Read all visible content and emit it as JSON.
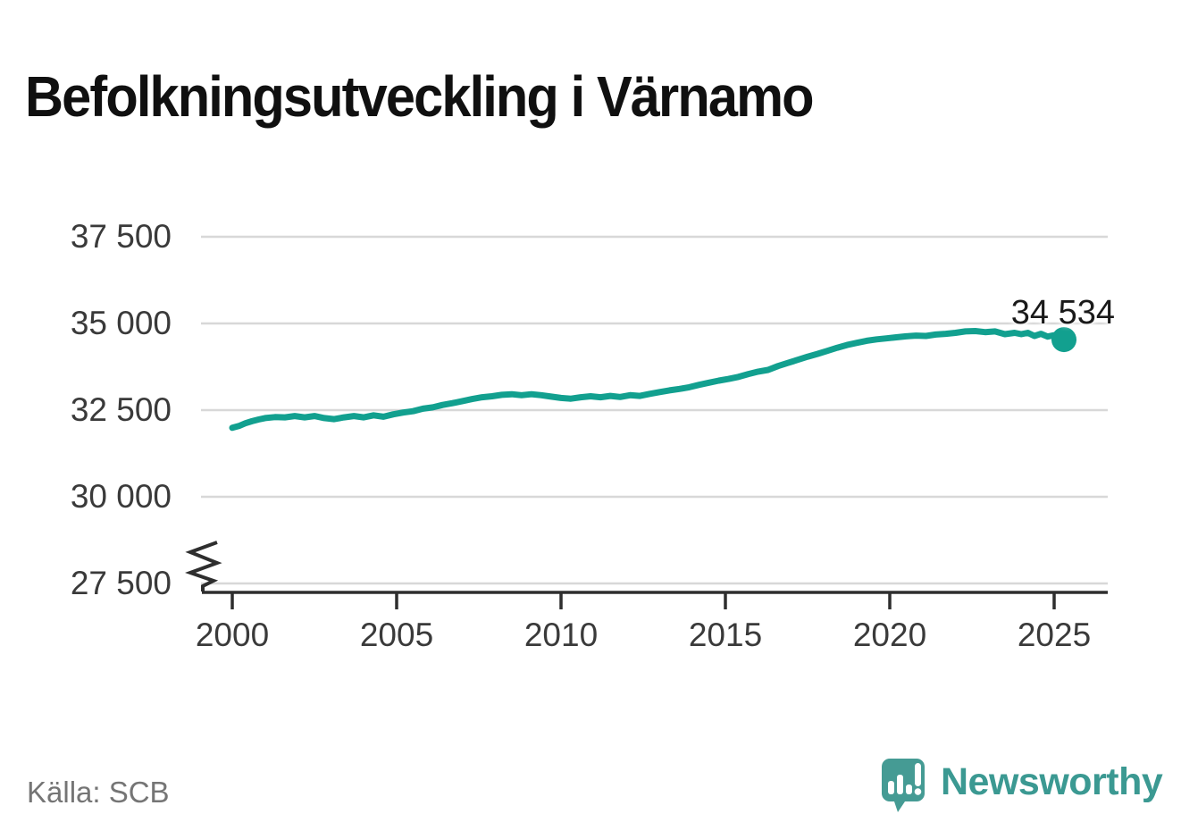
{
  "header": {
    "title": "Befolkningsutveckling i Värnamo"
  },
  "chart_data": {
    "type": "line",
    "title": "Befolkningsutveckling i Värnamo",
    "xlabel": "",
    "ylabel": "",
    "grid": true,
    "x_axis": {
      "ticks": [
        2000,
        2005,
        2010,
        2015,
        2020,
        2025
      ],
      "range": [
        1999.0,
        2026.6
      ]
    },
    "y_axis": {
      "ticks": [
        27500,
        30000,
        32500,
        35000,
        37500
      ],
      "tick_labels": [
        "27 500",
        "30 000",
        "32 500",
        "35 000",
        "37 500"
      ],
      "range_shown": [
        27500,
        37500
      ],
      "broken_axis": true
    },
    "series": [
      {
        "name": "Befolkning i Värnamo",
        "color": "#12a08f",
        "points": [
          [
            2000.0,
            31990
          ],
          [
            2000.2,
            32040
          ],
          [
            2000.4,
            32120
          ],
          [
            2000.6,
            32180
          ],
          [
            2000.8,
            32230
          ],
          [
            2001.0,
            32270
          ],
          [
            2001.3,
            32300
          ],
          [
            2001.6,
            32290
          ],
          [
            2001.9,
            32330
          ],
          [
            2002.2,
            32290
          ],
          [
            2002.5,
            32330
          ],
          [
            2002.8,
            32270
          ],
          [
            2003.1,
            32240
          ],
          [
            2003.4,
            32290
          ],
          [
            2003.7,
            32330
          ],
          [
            2004.0,
            32290
          ],
          [
            2004.3,
            32350
          ],
          [
            2004.6,
            32310
          ],
          [
            2004.9,
            32380
          ],
          [
            2005.2,
            32430
          ],
          [
            2005.5,
            32470
          ],
          [
            2005.8,
            32540
          ],
          [
            2006.1,
            32580
          ],
          [
            2006.4,
            32650
          ],
          [
            2006.7,
            32700
          ],
          [
            2007.0,
            32760
          ],
          [
            2007.3,
            32820
          ],
          [
            2007.6,
            32870
          ],
          [
            2007.9,
            32900
          ],
          [
            2008.2,
            32940
          ],
          [
            2008.5,
            32960
          ],
          [
            2008.8,
            32930
          ],
          [
            2009.1,
            32960
          ],
          [
            2009.4,
            32930
          ],
          [
            2009.7,
            32890
          ],
          [
            2010.0,
            32850
          ],
          [
            2010.3,
            32830
          ],
          [
            2010.6,
            32870
          ],
          [
            2010.9,
            32900
          ],
          [
            2011.2,
            32870
          ],
          [
            2011.5,
            32910
          ],
          [
            2011.8,
            32880
          ],
          [
            2012.1,
            32930
          ],
          [
            2012.4,
            32910
          ],
          [
            2012.7,
            32970
          ],
          [
            2013.0,
            33020
          ],
          [
            2013.3,
            33070
          ],
          [
            2013.6,
            33110
          ],
          [
            2013.9,
            33160
          ],
          [
            2014.2,
            33230
          ],
          [
            2014.5,
            33290
          ],
          [
            2014.8,
            33350
          ],
          [
            2015.1,
            33400
          ],
          [
            2015.4,
            33460
          ],
          [
            2015.7,
            33540
          ],
          [
            2016.0,
            33610
          ],
          [
            2016.3,
            33660
          ],
          [
            2016.6,
            33770
          ],
          [
            2016.9,
            33860
          ],
          [
            2017.2,
            33950
          ],
          [
            2017.5,
            34040
          ],
          [
            2017.8,
            34120
          ],
          [
            2018.1,
            34210
          ],
          [
            2018.4,
            34300
          ],
          [
            2018.7,
            34380
          ],
          [
            2019.0,
            34440
          ],
          [
            2019.3,
            34500
          ],
          [
            2019.6,
            34540
          ],
          [
            2019.9,
            34570
          ],
          [
            2020.2,
            34600
          ],
          [
            2020.5,
            34630
          ],
          [
            2020.8,
            34650
          ],
          [
            2021.1,
            34640
          ],
          [
            2021.4,
            34680
          ],
          [
            2021.7,
            34700
          ],
          [
            2022.0,
            34730
          ],
          [
            2022.3,
            34770
          ],
          [
            2022.6,
            34780
          ],
          [
            2022.9,
            34750
          ],
          [
            2023.2,
            34770
          ],
          [
            2023.5,
            34690
          ],
          [
            2023.8,
            34730
          ],
          [
            2024.0,
            34690
          ],
          [
            2024.2,
            34730
          ],
          [
            2024.4,
            34640
          ],
          [
            2024.6,
            34700
          ],
          [
            2024.8,
            34620
          ],
          [
            2025.0,
            34660
          ],
          [
            2025.15,
            34580
          ],
          [
            2025.3,
            34534
          ]
        ]
      }
    ],
    "end_point": {
      "value": 34534,
      "label": "34 534"
    }
  },
  "footer": {
    "source_label": "Källa: SCB",
    "brand": "Newsworthy"
  },
  "colors": {
    "line": "#12a08f",
    "gridline": "#d8d8d8",
    "axis": "#2e2e2e",
    "tick_text": "#3a3a3a",
    "title_text": "#101010",
    "source_text": "#757575",
    "logo": "#459b94",
    "wordmark": "#3b9992"
  }
}
